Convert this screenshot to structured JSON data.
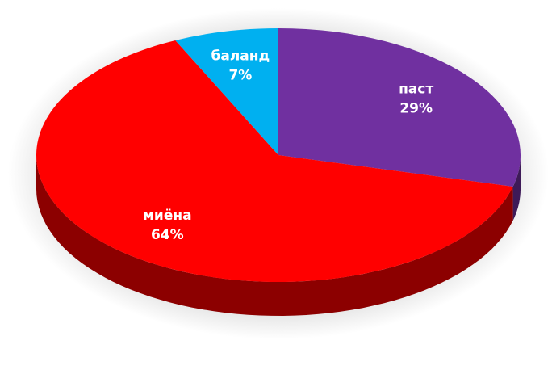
{
  "chart_data": {
    "type": "pie",
    "categories": [
      "паст",
      "миёна",
      "баланд"
    ],
    "values": [
      29,
      64,
      7
    ],
    "value_labels": [
      "29%",
      "64%",
      "7%"
    ],
    "colors": [
      "#7030a0",
      "#ff0000",
      "#00b0f0"
    ]
  }
}
